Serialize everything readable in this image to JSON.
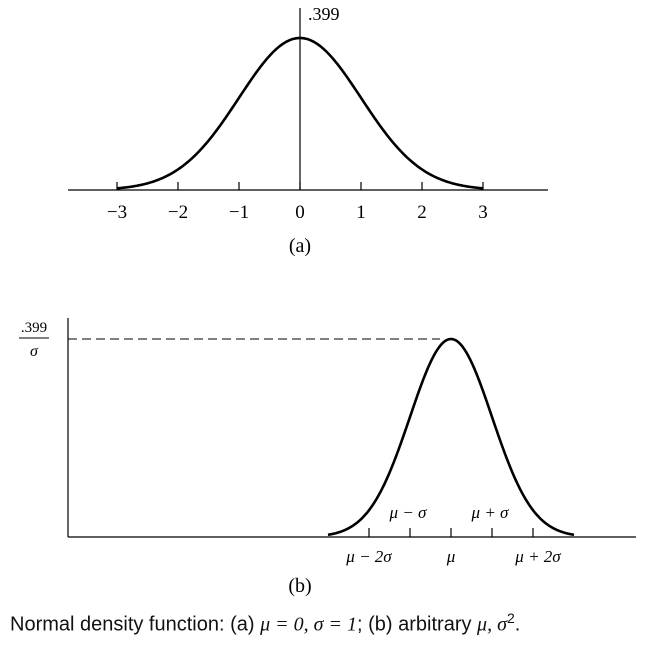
{
  "chart_data": [
    {
      "type": "line",
      "title": "",
      "xlabel": "",
      "ylabel": "",
      "panel_label": "(a)",
      "x_ticks": [
        -3,
        -2,
        -1,
        0,
        1,
        2,
        3
      ],
      "x_tick_labels": [
        "−3",
        "−2",
        "−1",
        "0",
        "1",
        "2",
        "3"
      ],
      "xlim": [
        -3.9,
        4.1
      ],
      "ylim": [
        0,
        0.45
      ],
      "peak_label": ".399",
      "series": [
        {
          "function": "standard normal density",
          "mu": 0,
          "sigma": 1,
          "x": [
            -3,
            -2.5,
            -2,
            -1.5,
            -1,
            -0.5,
            0,
            0.5,
            1,
            1.5,
            2,
            2.5,
            3
          ],
          "y": [
            0.0044,
            0.0175,
            0.054,
            0.1295,
            0.242,
            0.3521,
            0.399,
            0.3521,
            0.242,
            0.1295,
            0.054,
            0.0175,
            0.0044
          ]
        }
      ]
    },
    {
      "type": "line",
      "title": "",
      "xlabel": "",
      "ylabel": "",
      "panel_label": "(b)",
      "y_label_numerator": ".399",
      "y_label_denominator": "σ",
      "x_ticks_sigma": [
        -2,
        -1,
        0,
        1,
        2
      ],
      "x_tick_labels_below": [
        "μ − 2σ",
        "μ",
        "μ + 2σ"
      ],
      "x_tick_labels_above": [
        "μ − σ",
        "μ + σ"
      ],
      "xlim_sigma": [
        -6.4,
        3.2
      ],
      "ylim": [
        0,
        0.45
      ],
      "series": [
        {
          "function": "normal density, arbitrary mu and sigma",
          "x_sigma": [
            -3,
            -2.5,
            -2,
            -1.5,
            -1,
            -0.5,
            0,
            0.5,
            1,
            1.5,
            2,
            2.5,
            3
          ],
          "y_times_sigma": [
            0.0044,
            0.0175,
            0.054,
            0.1295,
            0.242,
            0.3521,
            0.399,
            0.3521,
            0.242,
            0.1295,
            0.054,
            0.0175,
            0.0044
          ]
        }
      ]
    }
  ],
  "caption": {
    "prefix": "Normal density function: (a) ",
    "part_a": "μ = 0, σ = 1",
    "middle": "; (b) arbitrary ",
    "part_b": "μ, σ",
    "sup": "2",
    "suffix": "."
  }
}
